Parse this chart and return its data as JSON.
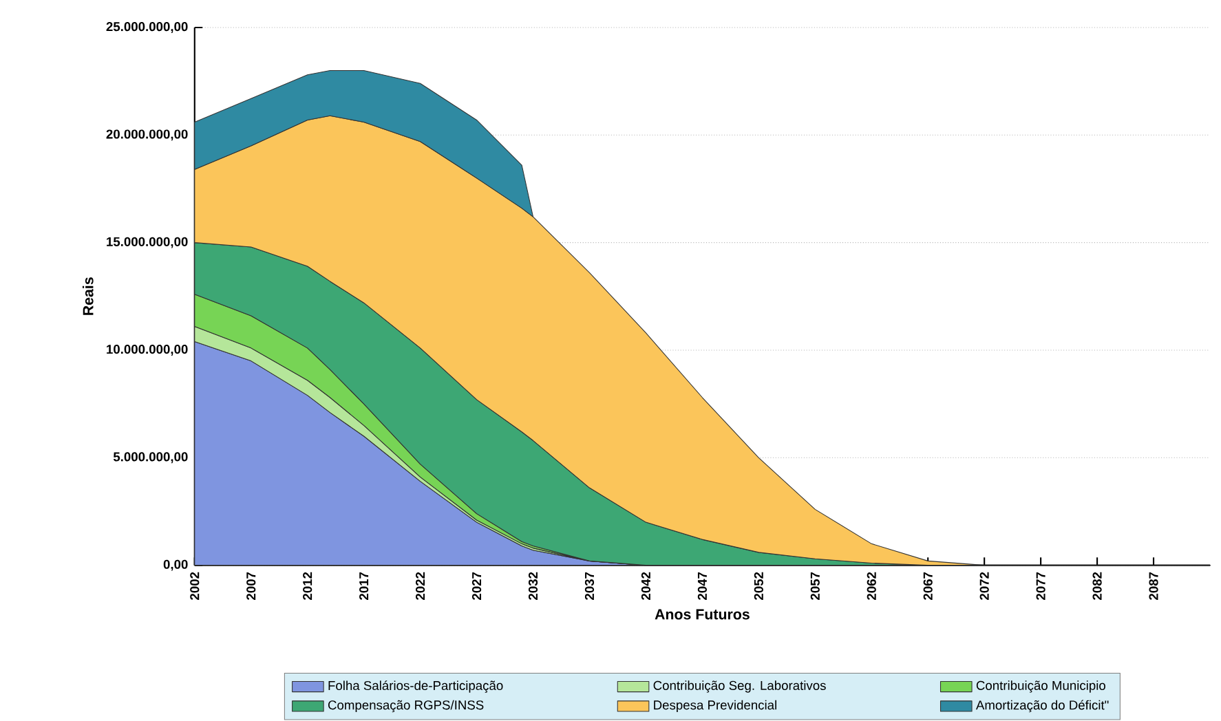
{
  "chart_data": {
    "type": "area",
    "stacked": true,
    "xlabel": "Anos Futuros",
    "ylabel": "Reais",
    "xlim": [
      2002,
      2092
    ],
    "xticks": [
      2002,
      2007,
      2012,
      2017,
      2022,
      2027,
      2032,
      2037,
      2042,
      2047,
      2052,
      2057,
      2062,
      2067,
      2072,
      2077,
      2082,
      2087
    ],
    "ylim": [
      0,
      25000000
    ],
    "yticks": [
      {
        "value": 0,
        "label": "0,00"
      },
      {
        "value": 5000000,
        "label": "5.000.000,00"
      },
      {
        "value": 10000000,
        "label": "10.000.000,00"
      },
      {
        "value": 15000000,
        "label": "15.000.000,00"
      },
      {
        "value": 20000000,
        "label": "20.000.000,00"
      },
      {
        "value": 25000000,
        "label": "25.000.000,00"
      }
    ],
    "grid": "y",
    "legend": "bottom",
    "x": [
      2002,
      2007,
      2012,
      2014,
      2017,
      2022,
      2027,
      2031,
      2032,
      2037,
      2042,
      2047,
      2052,
      2057,
      2062,
      2067,
      2072,
      2092
    ],
    "series": [
      {
        "name": "Folha Salários-de-Participação",
        "color": "#7f95e0",
        "values": [
          10400000,
          9500000,
          7900000,
          7100000,
          6000000,
          3900000,
          2000000,
          900000,
          700000,
          200000,
          0,
          0,
          0,
          0,
          0,
          0,
          0,
          0
        ]
      },
      {
        "name": "Contribuição Seg. Laborativos",
        "color": "#b5e69a",
        "values": [
          700000,
          600000,
          700000,
          700000,
          500000,
          200000,
          100000,
          100000,
          100000,
          0,
          0,
          0,
          0,
          0,
          0,
          0,
          0,
          0
        ]
      },
      {
        "name": "Contribuição Municipio",
        "color": "#77d455",
        "values": [
          1500000,
          1500000,
          1500000,
          1300000,
          1000000,
          600000,
          300000,
          100000,
          100000,
          0,
          0,
          0,
          0,
          0,
          0,
          0,
          0,
          0
        ]
      },
      {
        "name": "Compensação RGPS/INSS",
        "color": "#3da774",
        "values": [
          2400000,
          3200000,
          3800000,
          4100000,
          4700000,
          5400000,
          5300000,
          5100000,
          4900000,
          3400000,
          2000000,
          1200000,
          600000,
          300000,
          100000,
          0,
          0,
          0
        ]
      },
      {
        "name": "Despesa Previdencial",
        "color": "#fbc55a",
        "values": [
          3400000,
          4700000,
          6800000,
          7700000,
          8400000,
          9600000,
          10300000,
          10400000,
          10400000,
          10000000,
          8800000,
          6600000,
          4400000,
          2300000,
          900000,
          200000,
          0,
          0
        ]
      },
      {
        "name": "Amortização do Déficit\"",
        "color": "#2f8aa2",
        "x": [
          2002,
          2007,
          2012,
          2014,
          2017,
          2022,
          2027,
          2031,
          2032
        ],
        "values": [
          2200000,
          2200000,
          2100000,
          2100000,
          2400000,
          2700000,
          2700000,
          2000000,
          0
        ]
      }
    ]
  }
}
